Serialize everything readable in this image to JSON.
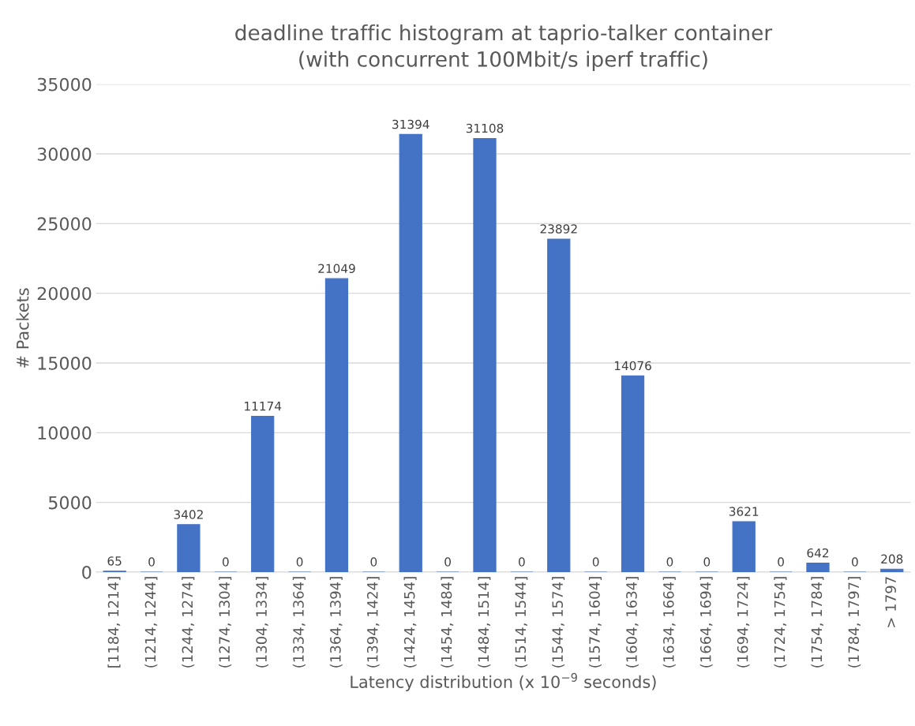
{
  "chart_data": {
    "type": "bar",
    "title": "deadline traffic histogram at taprio-talker container\n(with concurrent 100Mbit/s iperf traffic)",
    "xlabel": "Latency distribution (x 10$^{−9}$ seconds)",
    "ylabel": "# Packets",
    "categories": [
      "[1184, 1214]",
      "(1214, 1244]",
      "(1244, 1274]",
      "(1274, 1304]",
      "(1304, 1334]",
      "(1334, 1364]",
      "(1364, 1394]",
      "(1394, 1424]",
      "(1424, 1454]",
      "(1454, 1484]",
      "(1484, 1514]",
      "(1514, 1544]",
      "(1544, 1574]",
      "(1574, 1604]",
      "(1604, 1634]",
      "(1634, 1664]",
      "(1664, 1694]",
      "(1694, 1724]",
      "(1724, 1754]",
      "(1754, 1784]",
      "(1784, 1797]",
      "> 1797"
    ],
    "values": [
      65,
      0,
      3402,
      0,
      11174,
      0,
      21049,
      0,
      31394,
      0,
      31108,
      0,
      23892,
      0,
      14076,
      0,
      0,
      3621,
      0,
      642,
      0,
      208
    ],
    "color": "#4472c4",
    "ylim": [
      0,
      35000
    ],
    "yticks": [
      0,
      5000,
      10000,
      15000,
      20000,
      25000,
      30000,
      35000
    ],
    "grid": "y",
    "data_labels": true
  }
}
